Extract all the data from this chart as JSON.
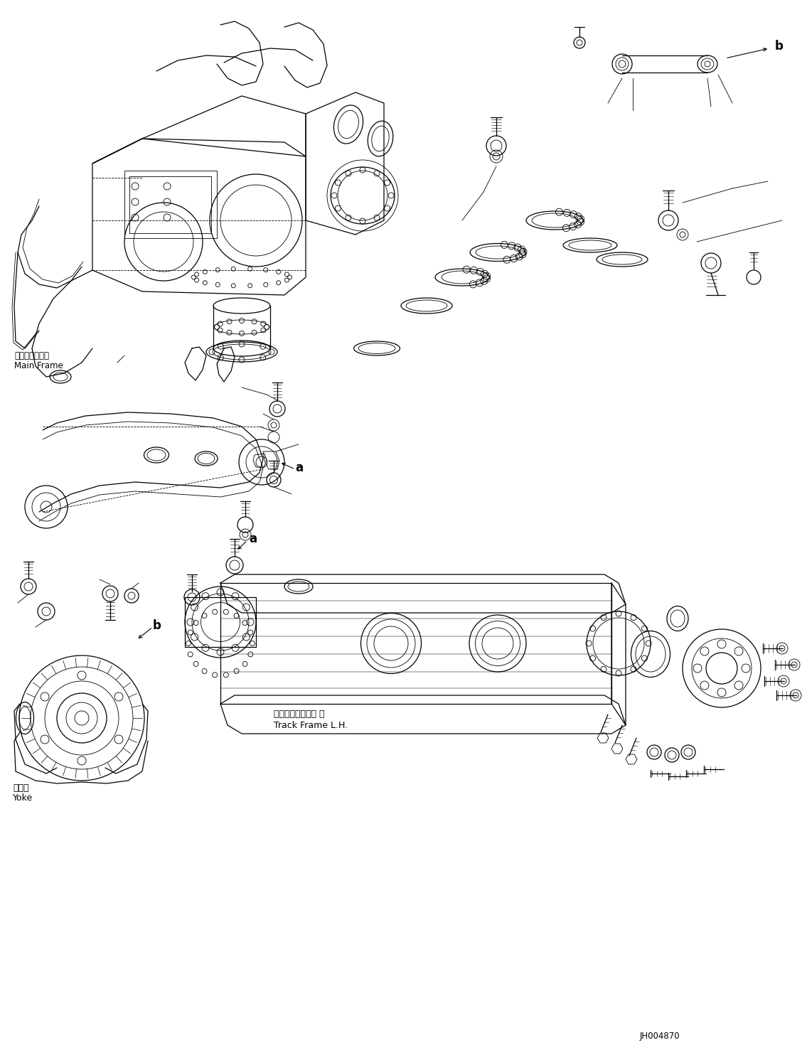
{
  "fig_width": 11.35,
  "fig_height": 14.91,
  "dpi": 100,
  "bg_color": "#ffffff",
  "line_color": "#000000",
  "part_id": "JH004870",
  "labels": {
    "main_frame_jp": "メインフレーム",
    "main_frame_en": "Main Frame",
    "track_frame_jp": "トラックフレーム 左",
    "track_frame_en": "Track Frame L.H.",
    "yoke_jp": "ヨーク",
    "yoke_en": "Yoke",
    "label_a1": "a",
    "label_a2": "a",
    "label_b1": "b",
    "label_b2": "b"
  }
}
